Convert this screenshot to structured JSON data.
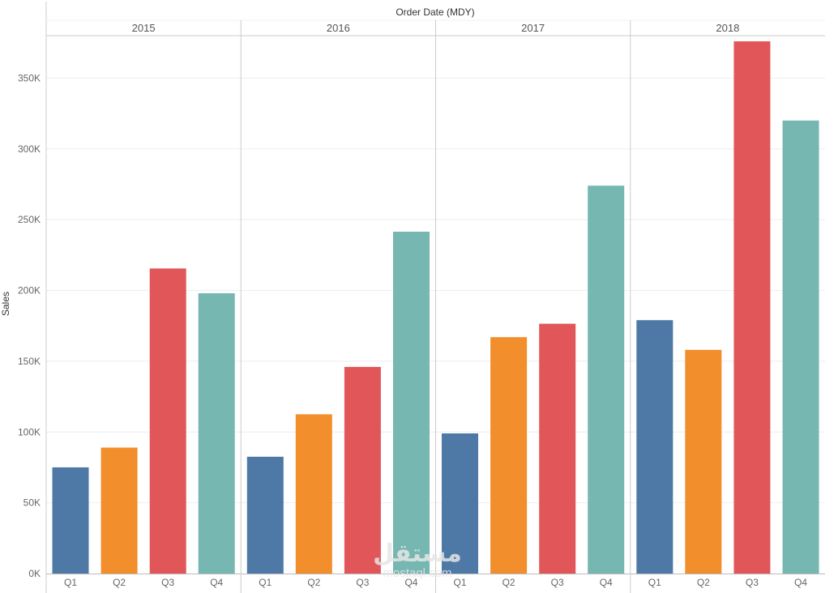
{
  "chart_data": {
    "type": "bar",
    "title": "Order Date (MDY)",
    "ylabel": "Sales",
    "xlabel": "",
    "ylim": [
      0,
      380000
    ],
    "y_ticks": [
      {
        "value": 0,
        "label": "0K"
      },
      {
        "value": 50000,
        "label": "50K"
      },
      {
        "value": 100000,
        "label": "100K"
      },
      {
        "value": 150000,
        "label": "150K"
      },
      {
        "value": 200000,
        "label": "200K"
      },
      {
        "value": 250000,
        "label": "250K"
      },
      {
        "value": 300000,
        "label": "300K"
      },
      {
        "value": 350000,
        "label": "350K"
      }
    ],
    "grid": true,
    "quarter_colors": {
      "Q1": "#4e79a7",
      "Q2": "#f28e2b",
      "Q3": "#e15759",
      "Q4": "#76b7b2"
    },
    "groups": [
      {
        "year": "2015",
        "bars": [
          {
            "quarter": "Q1",
            "value": 75000
          },
          {
            "quarter": "Q2",
            "value": 89000
          },
          {
            "quarter": "Q3",
            "value": 215500
          },
          {
            "quarter": "Q4",
            "value": 198000
          }
        ]
      },
      {
        "year": "2016",
        "bars": [
          {
            "quarter": "Q1",
            "value": 82500
          },
          {
            "quarter": "Q2",
            "value": 112500
          },
          {
            "quarter": "Q3",
            "value": 146000
          },
          {
            "quarter": "Q4",
            "value": 241500
          }
        ]
      },
      {
        "year": "2017",
        "bars": [
          {
            "quarter": "Q1",
            "value": 99000
          },
          {
            "quarter": "Q2",
            "value": 167000
          },
          {
            "quarter": "Q3",
            "value": 176500
          },
          {
            "quarter": "Q4",
            "value": 274000
          }
        ]
      },
      {
        "year": "2018",
        "bars": [
          {
            "quarter": "Q1",
            "value": 179000
          },
          {
            "quarter": "Q2",
            "value": 158000
          },
          {
            "quarter": "Q3",
            "value": 376000
          },
          {
            "quarter": "Q4",
            "value": 320000
          }
        ]
      }
    ]
  },
  "watermark": {
    "text": "مستقل",
    "sub": "mostaql.com"
  }
}
